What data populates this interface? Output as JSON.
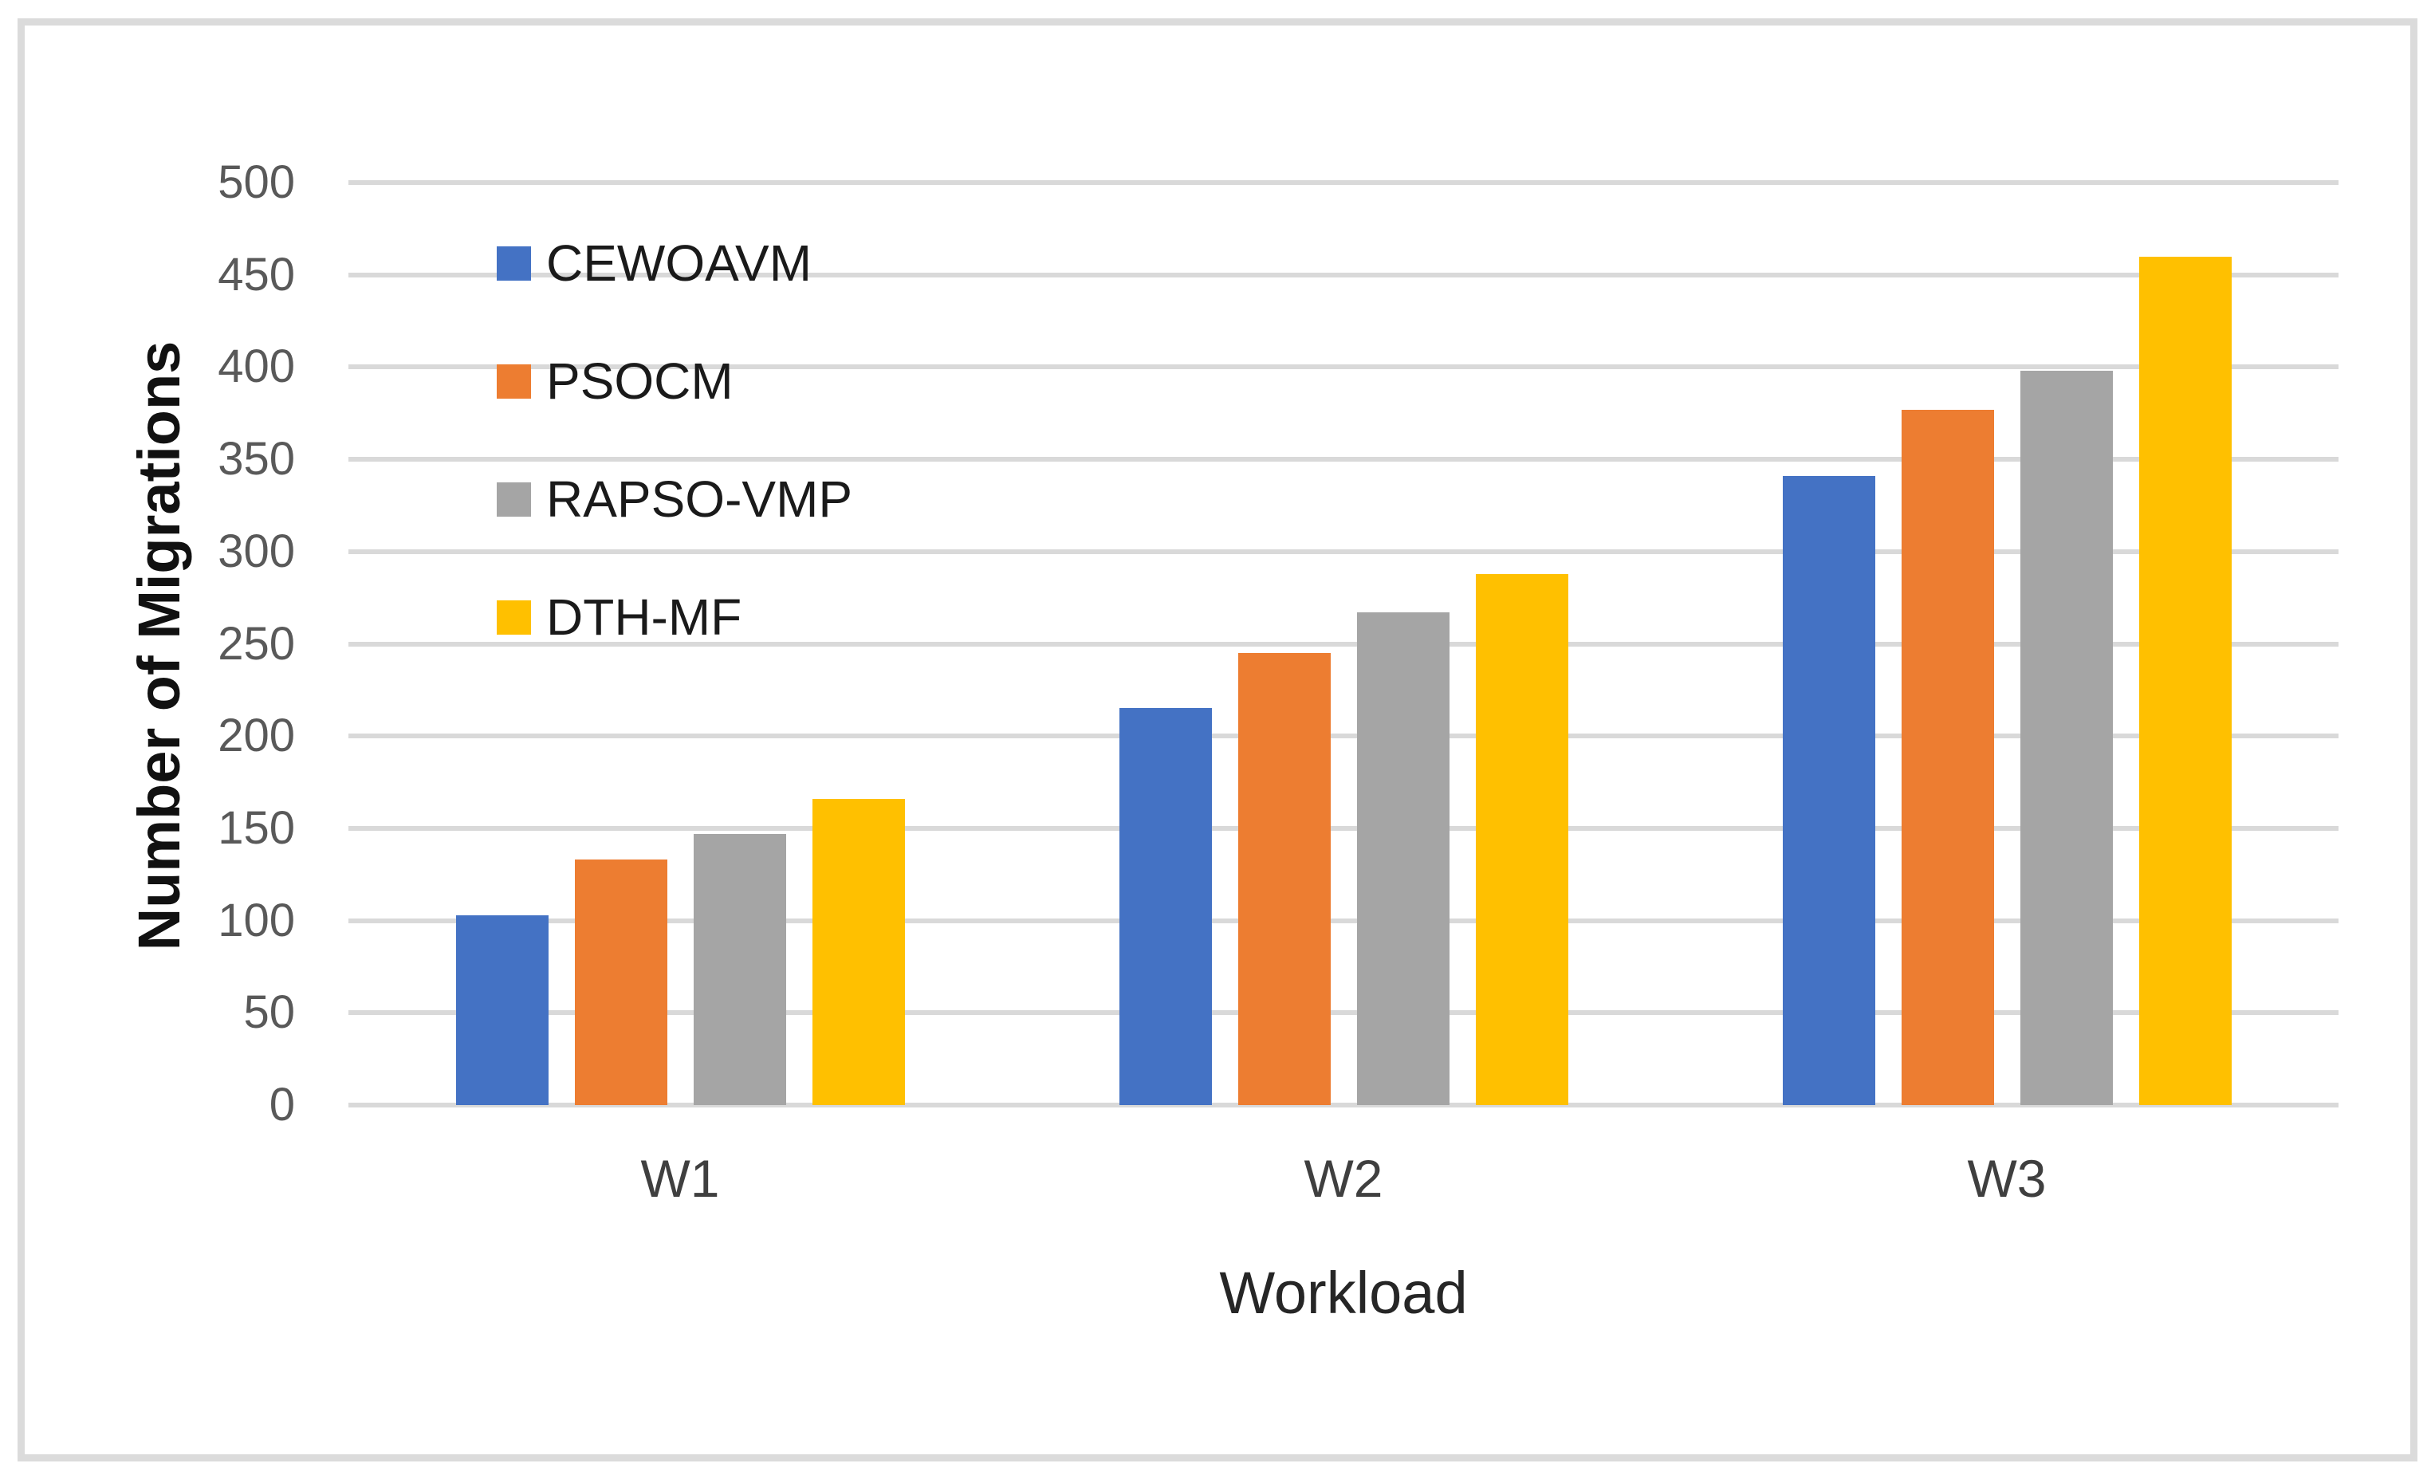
{
  "figure": {
    "background": "#FFFFFF",
    "border_color": "#DBDBDB"
  },
  "chart_data": {
    "type": "bar",
    "title": "",
    "categories": [
      "W1",
      "W2",
      "W3"
    ],
    "series": [
      {
        "name": "CEWOAVM",
        "color": "#4472C4",
        "values": [
          103,
          215,
          341
        ]
      },
      {
        "name": "PSOCM",
        "color": "#ED7D31",
        "values": [
          133,
          245,
          377
        ]
      },
      {
        "name": "RAPSO-VMP",
        "color": "#A5A5A5",
        "values": [
          147,
          267,
          398
        ]
      },
      {
        "name": "DTH-MF",
        "color": "#FFC000",
        "values": [
          166,
          288,
          460
        ]
      }
    ],
    "xlabel": "Workload",
    "ylabel": "Number of Migrations",
    "ylim": [
      0,
      500
    ],
    "yticks": [
      0,
      50,
      100,
      150,
      200,
      250,
      300,
      350,
      400,
      450,
      500
    ],
    "ytick_labels": [
      "0",
      "50",
      "100",
      "150",
      "200",
      "250",
      "300",
      "350",
      "400",
      "450",
      "500"
    ],
    "grid": "horizontal",
    "gridline_color": "#D9D9D9",
    "legend_position": "inside-top-left",
    "legend": [
      "CEWOAVM",
      "PSOCM",
      "RAPSO-VMP",
      "DTH-MF"
    ]
  }
}
